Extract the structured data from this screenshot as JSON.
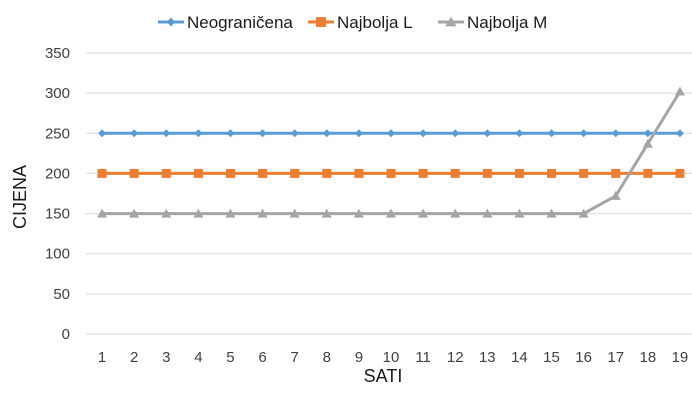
{
  "chart_data": {
    "type": "line",
    "title": "",
    "xlabel": "SATI",
    "ylabel": "CIJENA",
    "categories": [
      "1",
      "2",
      "3",
      "4",
      "5",
      "6",
      "7",
      "8",
      "9",
      "10",
      "11",
      "12",
      "13",
      "14",
      "15",
      "16",
      "17",
      "18",
      "19"
    ],
    "ylim": [
      0,
      350
    ],
    "yticks": [
      0,
      50,
      100,
      150,
      200,
      250,
      300,
      350
    ],
    "grid": true,
    "legend_position": "top",
    "series": [
      {
        "name": "Neograničena",
        "color": "#5b9bd5",
        "marker": "diamond",
        "values": [
          250,
          250,
          250,
          250,
          250,
          250,
          250,
          250,
          250,
          250,
          250,
          250,
          250,
          250,
          250,
          250,
          250,
          250,
          250
        ]
      },
      {
        "name": "Najbolja L",
        "color": "#ed7d31",
        "marker": "square",
        "values": [
          200,
          200,
          200,
          200,
          200,
          200,
          200,
          200,
          200,
          200,
          200,
          200,
          200,
          200,
          200,
          200,
          200,
          200,
          200
        ]
      },
      {
        "name": "Najbolja M",
        "color": "#a5a5a5",
        "marker": "triangle",
        "values": [
          150,
          150,
          150,
          150,
          150,
          150,
          150,
          150,
          150,
          150,
          150,
          150,
          150,
          150,
          150,
          150,
          172,
          237,
          302
        ]
      }
    ]
  }
}
